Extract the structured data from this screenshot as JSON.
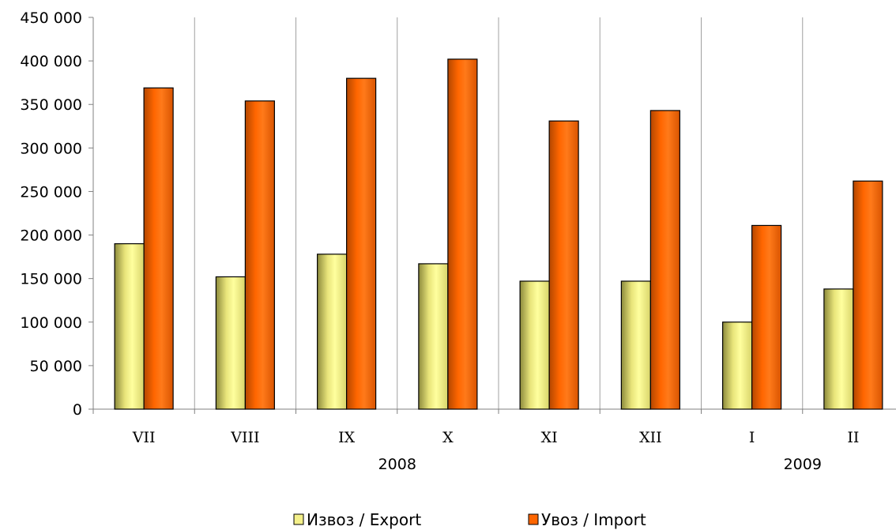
{
  "chart_data": {
    "type": "bar",
    "categories": [
      "VII",
      "VIII",
      "IX",
      "X",
      "XI",
      "XII",
      "I",
      "II"
    ],
    "year_labels": [
      {
        "label": "2008",
        "from": 0,
        "to": 5
      },
      {
        "label": "2009",
        "from": 6,
        "to": 7
      }
    ],
    "series": [
      {
        "name": "Извоз / Export",
        "color": "#f4f08a",
        "values": [
          190000,
          152000,
          178000,
          167000,
          147000,
          147000,
          100000,
          138000
        ]
      },
      {
        "name": "Увоз / Import",
        "color": "#ff6600",
        "values": [
          369000,
          354000,
          380000,
          402000,
          331000,
          343000,
          211000,
          262000
        ]
      }
    ],
    "yticks": [
      "0",
      "50 000",
      "100 000",
      "150 000",
      "200 000",
      "250 000",
      "300 000",
      "350 000",
      "400 000",
      "450 000"
    ],
    "ylim": [
      0,
      450000
    ],
    "grid": "vertical",
    "legend": "bottom"
  }
}
